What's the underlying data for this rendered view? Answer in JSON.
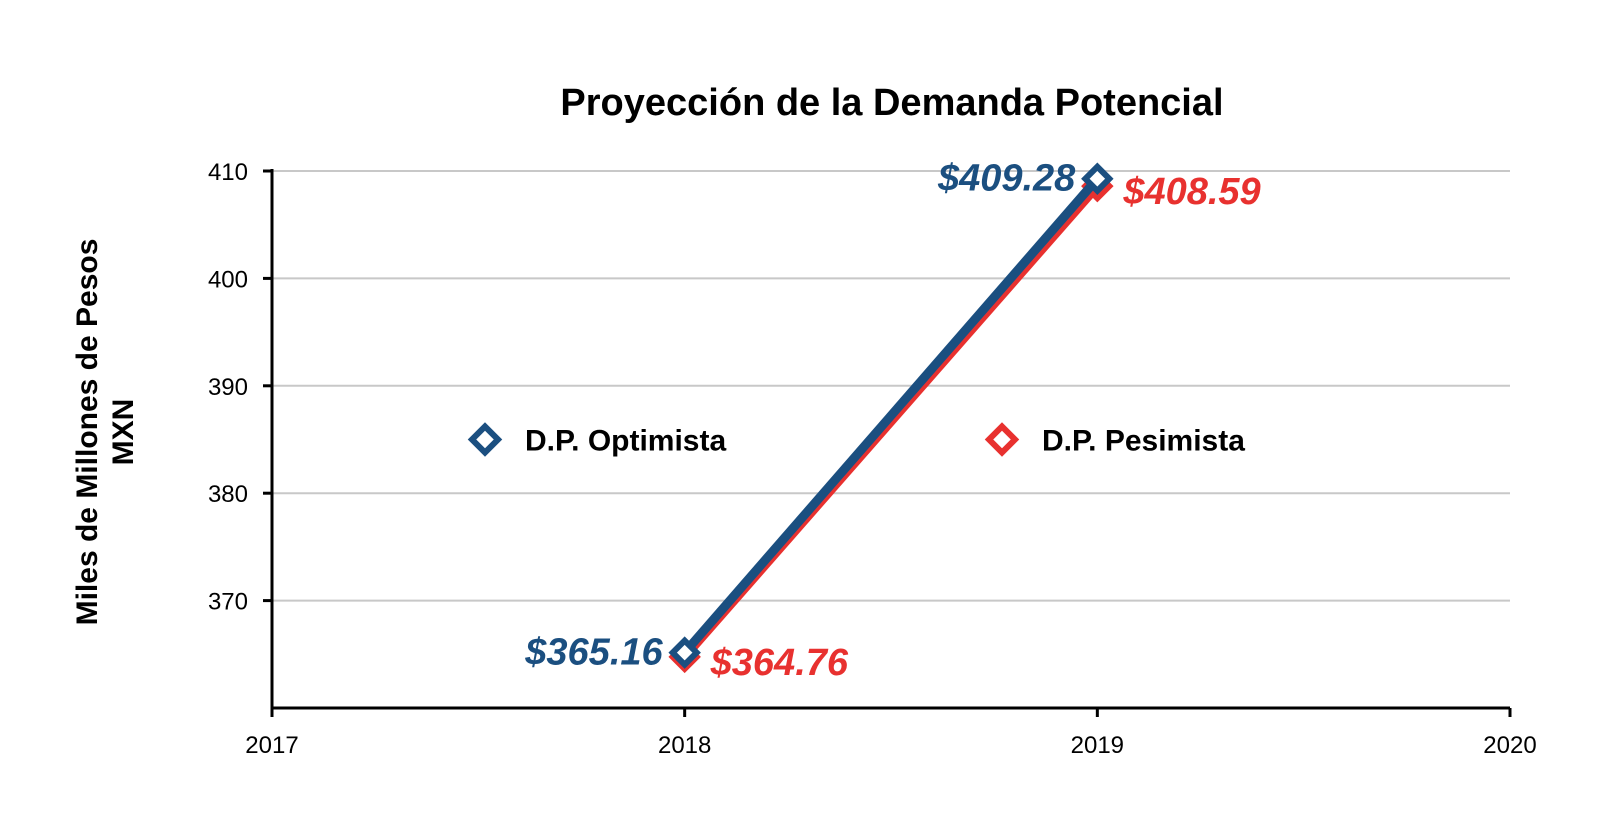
{
  "chart_data": {
    "type": "line",
    "title": "Proyección de la Demanda Potencial",
    "ylabel_line1": "Miles de Millones de Pesos",
    "ylabel_line2": "MXN",
    "xlabel": "",
    "xlim": [
      2017,
      2020
    ],
    "ylim": [
      360,
      410
    ],
    "x_ticks": [
      2017,
      2018,
      2019,
      2020
    ],
    "x_tick_labels": [
      "2017",
      "2018",
      "2019",
      "2020"
    ],
    "y_ticks": [
      370,
      380,
      390,
      400,
      410
    ],
    "y_tick_labels": [
      "370",
      "380",
      "390",
      "400",
      "410"
    ],
    "grid": true,
    "series": [
      {
        "name": "D.P. Optimista",
        "color": "#1b4f80",
        "x": [
          2018,
          2019
        ],
        "values": [
          365.16,
          409.28
        ],
        "labels": [
          "$365.16",
          "$409.28"
        ],
        "label_side": "left"
      },
      {
        "name": "D.P. Pesimista",
        "color": "#e8312f",
        "x": [
          2018,
          2019
        ],
        "values": [
          364.76,
          408.59
        ],
        "labels": [
          "$364.76",
          "$408.59"
        ],
        "label_side": "right"
      }
    ],
    "legend_placement": "inside-middle"
  }
}
